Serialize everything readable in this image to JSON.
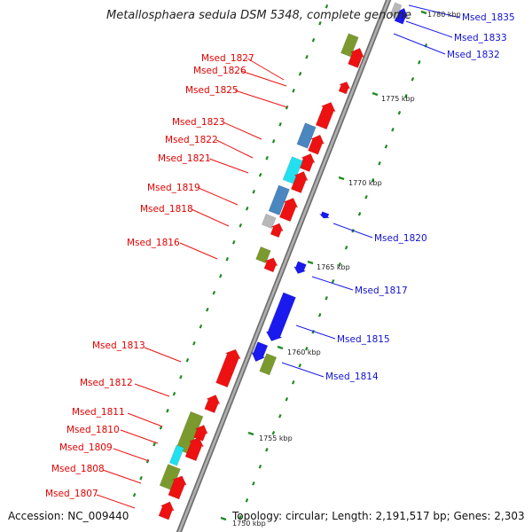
{
  "title": "Metallosphaera sedula DSM 5348, complete genome",
  "footer": {
    "accession": "Accession: NC_009440",
    "topology": "Topology: circular; Length: 2,191,517 bp; Genes: 2,303"
  },
  "colors": {
    "forward_cds": "#ee1111",
    "reverse_cds": "#1a1aee",
    "olive_feature": "#7a9a2e",
    "cyan_feature": "#22e0f0",
    "steelblue_feature": "#4a86c0",
    "gray_feature": "#b8b8b8",
    "backbone": "#9a9a9a",
    "gc_dots": "#1f8a1f"
  },
  "ticks": [
    "1780 kbp",
    "1775 kbp",
    "1770 kbp",
    "1765 kbp",
    "1760 kbp",
    "1755 kbp",
    "1750 kbp"
  ],
  "left_labels": [
    "Msed_1827",
    "Msed_1826",
    "Msed_1825",
    "Msed_1823",
    "Msed_1822",
    "Msed_1821",
    "Msed_1819",
    "Msed_1818",
    "Msed_1816",
    "Msed_1813",
    "Msed_1812",
    "Msed_1811",
    "Msed_1810",
    "Msed_1809",
    "Msed_1808",
    "Msed_1807"
  ],
  "right_labels": [
    "Msed_1835",
    "Msed_1833",
    "Msed_1832",
    "Msed_1820",
    "Msed_1817",
    "Msed_1815",
    "Msed_1814"
  ]
}
